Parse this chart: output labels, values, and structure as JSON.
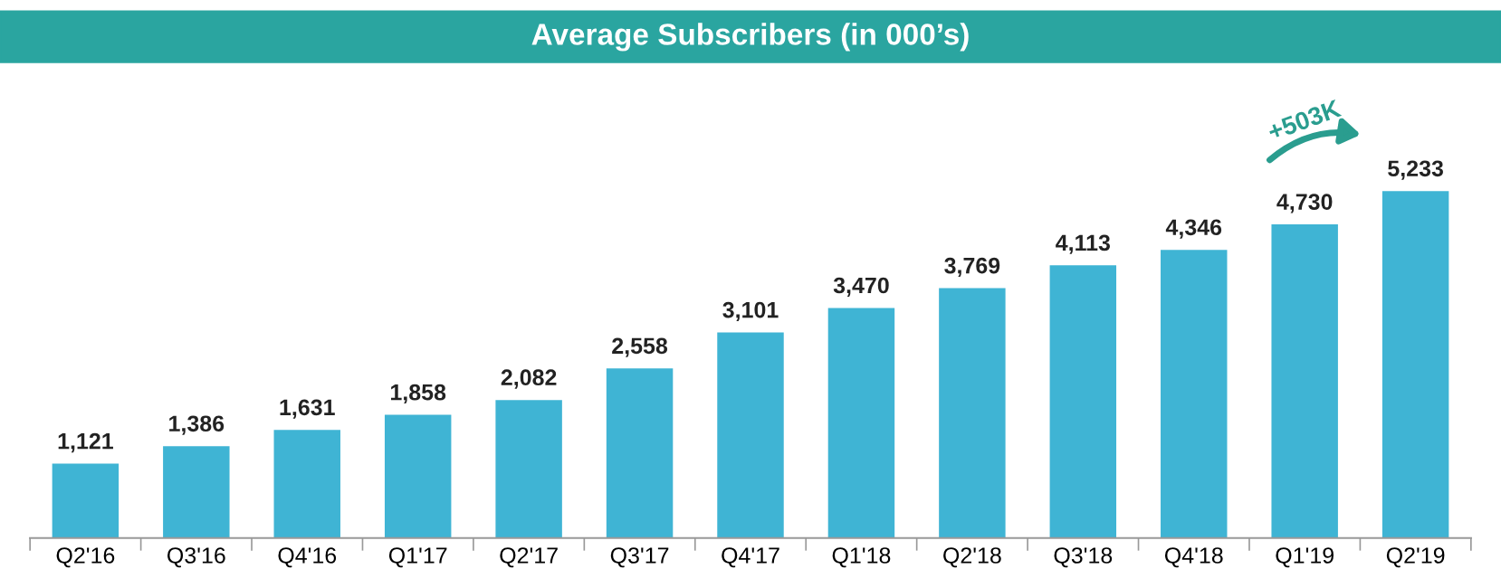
{
  "chart_data": {
    "type": "bar",
    "title": "Average Subscribers (in 000’s)",
    "categories": [
      "Q2'16",
      "Q3'16",
      "Q4'16",
      "Q1'17",
      "Q2'17",
      "Q3'17",
      "Q4'17",
      "Q1'18",
      "Q2'18",
      "Q3'18",
      "Q4'18",
      "Q1'19",
      "Q2'19"
    ],
    "values": [
      1121,
      1386,
      1631,
      1858,
      2082,
      2558,
      3101,
      3470,
      3769,
      4113,
      4346,
      4730,
      5233
    ],
    "value_labels": [
      "1,121",
      "1,386",
      "1,631",
      "1,858",
      "2,082",
      "2,558",
      "3,101",
      "3,470",
      "3,769",
      "4,113",
      "4,346",
      "4,730",
      "5,233"
    ],
    "color": "#3fb4d4",
    "grid": false,
    "tick_labels": "x",
    "annotations": [
      "+503K"
    ]
  }
}
